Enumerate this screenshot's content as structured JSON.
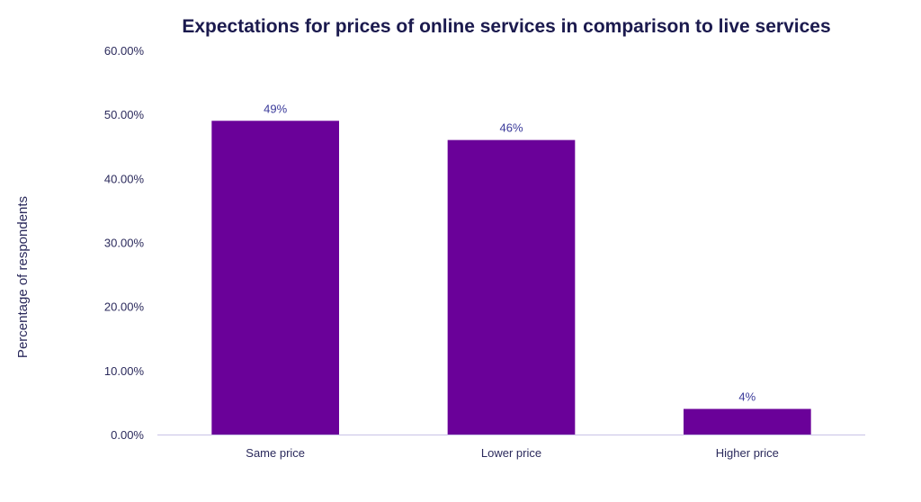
{
  "chart_data": {
    "type": "bar",
    "title": "Expectations for prices of online services in comparison to live services",
    "xlabel": "",
    "ylabel": "Percentage of respondents",
    "categories": [
      "Same price",
      "Lower price",
      "Higher price"
    ],
    "values": [
      49,
      46,
      4
    ],
    "data_labels": [
      "49%",
      "46%",
      "4%"
    ],
    "ylim": [
      0,
      60
    ],
    "y_ticks": [
      0,
      10,
      20,
      30,
      40,
      50,
      60
    ],
    "y_tick_labels": [
      "0.00%",
      "10.00%",
      "20.00%",
      "30.00%",
      "40.00%",
      "50.00%",
      "60.00%"
    ],
    "grid": false,
    "legend": "none",
    "colors": {
      "bar": "#6a0199",
      "axis_line": "#c9c3e6",
      "title": "#1b1a4e",
      "text": "#2b2a5c",
      "data_label": "#3a3a9a"
    }
  }
}
